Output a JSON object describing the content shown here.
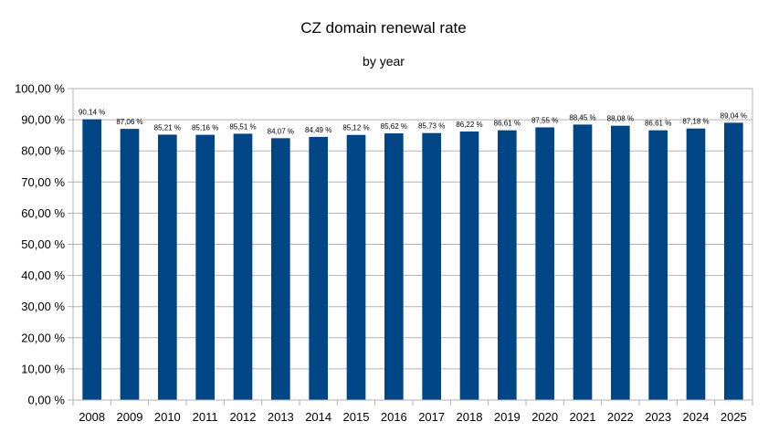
{
  "chart_data": {
    "type": "bar",
    "title": "CZ domain renewal rate",
    "subtitle": "by year",
    "categories": [
      "2008",
      "2009",
      "2010",
      "2011",
      "2012",
      "2013",
      "2014",
      "2015",
      "2016",
      "2017",
      "2018",
      "2019",
      "2020",
      "2021",
      "2022",
      "2023",
      "2024",
      "2025"
    ],
    "values": [
      90.14,
      87.06,
      85.21,
      85.16,
      85.51,
      84.07,
      84.49,
      85.12,
      85.62,
      85.73,
      86.22,
      86.61,
      87.55,
      88.45,
      88.08,
      86.61,
      87.18,
      89.04
    ],
    "data_labels": [
      "90,14 %",
      "87,06 %",
      "85,21 %",
      "85,16 %",
      "85,51 %",
      "84,07 %",
      "84,49 %",
      "85,12 %",
      "85,62 %",
      "85,73 %",
      "86,22 %",
      "86,61 %",
      "87,55 %",
      "88,45 %",
      "88,08 %",
      "86,61 %",
      "87,18 %",
      "89,04 %"
    ],
    "ylim": [
      0,
      100
    ],
    "yticks": [
      0,
      10,
      20,
      30,
      40,
      50,
      60,
      70,
      80,
      90,
      100
    ],
    "ytick_labels": [
      "0,00 %",
      "10,00 %",
      "20,00 %",
      "30,00 %",
      "40,00 %",
      "50,00 %",
      "60,00 %",
      "70,00 %",
      "80,00 %",
      "90,00 %",
      "100,00 %"
    ],
    "grid": true,
    "bar_color": "#004586"
  }
}
